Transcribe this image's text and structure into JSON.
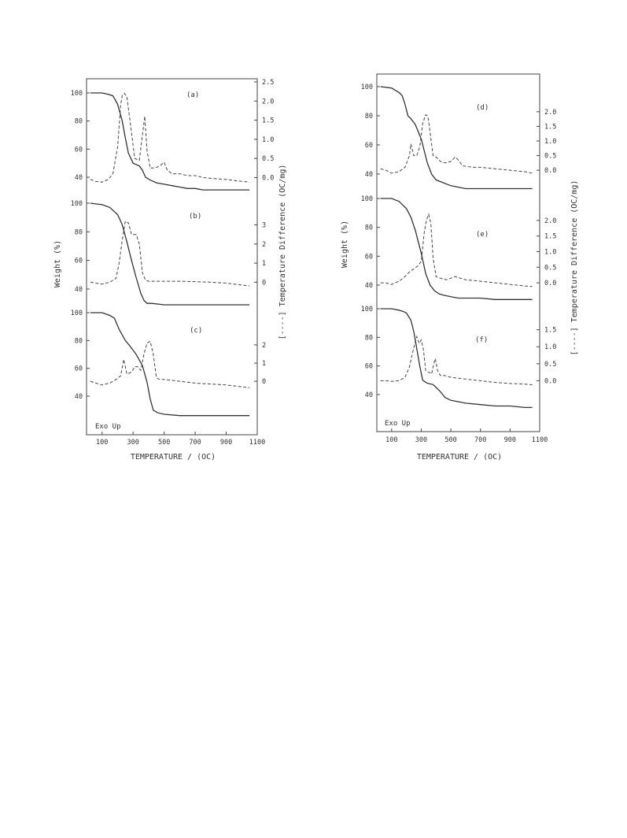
{
  "chart_data": [
    {
      "type": "line",
      "figure": "left",
      "xlabel": "TEMPERATURE / (OC)",
      "ylabel": "Weight (%)",
      "y2label": "[----] Temperature Difference (OC/mg)",
      "x_ticks": [
        "100",
        "300",
        "500",
        "700",
        "900",
        "1100"
      ],
      "xlim": [
        0,
        1100
      ],
      "annotation": "Exo Up",
      "panels": [
        {
          "label": "(a)",
          "weight_ticks": [
            "100",
            "80",
            "60",
            "40"
          ],
          "dt_ticks": [
            "2.5",
            "2.0",
            "1.5",
            "1.0",
            "0.5",
            "0.0"
          ],
          "dt_range": [
            -0.3,
            2.5
          ],
          "series": [
            {
              "kind": "weight",
              "x": [
                25,
                100,
                140,
                170,
                200,
                230,
                250,
                270,
                300,
                340,
                360,
                380,
                410,
                450,
                500,
                550,
                600,
                650,
                700,
                750,
                800,
                850,
                900,
                950,
                1000,
                1050
              ],
              "y": [
                100,
                100,
                99,
                98,
                92,
                80,
                68,
                57,
                50,
                48,
                45,
                40,
                38,
                36,
                35,
                34,
                33,
                32,
                32,
                31,
                31,
                31,
                31,
                31,
                31,
                31
              ]
            },
            {
              "kind": "dt",
              "x": [
                25,
                60,
                100,
                140,
                170,
                200,
                220,
                230,
                245,
                260,
                280,
                310,
                340,
                360,
                375,
                390,
                410,
                440,
                470,
                500,
                520,
                550,
                600,
                650,
                700,
                750,
                800,
                900,
                1000,
                1050
              ],
              "y": [
                -0.05,
                -0.1,
                -0.12,
                -0.05,
                0.1,
                0.8,
                1.9,
                2.15,
                2.2,
                2.1,
                1.5,
                0.5,
                0.45,
                1.1,
                1.6,
                0.7,
                0.25,
                0.25,
                0.3,
                0.4,
                0.2,
                0.1,
                0.1,
                0.05,
                0.05,
                0.0,
                -0.02,
                -0.05,
                -0.1,
                -0.12
              ]
            }
          ]
        },
        {
          "label": "(b)",
          "weight_ticks": [
            "100",
            "80",
            "60",
            "40"
          ],
          "dt_ticks": [
            "3",
            "2",
            "1",
            "0"
          ],
          "dt_range": [
            -0.4,
            3.6
          ],
          "series": [
            {
              "kind": "weight",
              "x": [
                25,
                100,
                150,
                200,
                230,
                260,
                290,
                320,
                350,
                370,
                390,
                420,
                500,
                600,
                700,
                800,
                900,
                1000,
                1050
              ],
              "y": [
                100,
                99,
                97,
                92,
                85,
                73,
                60,
                48,
                37,
                32,
                30,
                30,
                29,
                29,
                29,
                29,
                29,
                29,
                29
              ]
            },
            {
              "kind": "dt",
              "x": [
                25,
                60,
                100,
                150,
                190,
                210,
                230,
                250,
                270,
                290,
                320,
                340,
                360,
                380,
                400,
                450,
                500,
                600,
                700,
                800,
                900,
                1000,
                1050
              ],
              "y": [
                0,
                -0.05,
                -0.1,
                0,
                0.2,
                1.0,
                2.2,
                3.2,
                3.1,
                2.5,
                2.5,
                2.0,
                0.5,
                0.1,
                0.05,
                0.05,
                0.05,
                0.05,
                0.03,
                0,
                -0.05,
                -0.15,
                -0.2
              ]
            }
          ]
        },
        {
          "label": "(c)",
          "weight_ticks": [
            "100",
            "80",
            "60",
            "40"
          ],
          "dt_ticks": [
            "2",
            "1",
            "0"
          ],
          "dt_range": [
            -0.6,
            2.6
          ],
          "series": [
            {
              "kind": "weight",
              "x": [
                25,
                100,
                150,
                180,
                210,
                250,
                280,
                320,
                360,
                390,
                410,
                430,
                460,
                500,
                600,
                700,
                800,
                900,
                1000,
                1050
              ],
              "y": [
                100,
                100,
                98,
                96,
                88,
                80,
                76,
                70,
                62,
                50,
                38,
                30,
                28,
                27,
                26,
                26,
                26,
                26,
                26,
                26
              ]
            },
            {
              "kind": "dt",
              "x": [
                25,
                60,
                100,
                150,
                190,
                220,
                240,
                260,
                290,
                310,
                330,
                350,
                370,
                390,
                410,
                430,
                450,
                470,
                500,
                600,
                700,
                800,
                900,
                1000,
                1050
              ],
              "y": [
                0,
                -0.1,
                -0.2,
                -0.1,
                0.1,
                0.3,
                1.2,
                0.4,
                0.5,
                0.8,
                0.8,
                0.6,
                1.5,
                2.1,
                2.2,
                1.5,
                0.2,
                0.1,
                0.1,
                0,
                -0.1,
                -0.15,
                -0.2,
                -0.3,
                -0.35
              ]
            }
          ]
        }
      ]
    },
    {
      "type": "line",
      "figure": "right",
      "xlabel": "TEMPERATURE / (OC)",
      "ylabel": "Weight (%)",
      "y2label": "[----] Temperature Difference (OC/mg)",
      "x_ticks": [
        "100",
        "300",
        "500",
        "700",
        "900",
        "1100"
      ],
      "xlim": [
        0,
        1100
      ],
      "annotation": "Exo Up",
      "panels": [
        {
          "label": "(d)",
          "weight_ticks": [
            "100",
            "80",
            "60",
            "40"
          ],
          "dt_ticks": [
            "2.0",
            "1.5",
            "1.0",
            "0.5",
            "0.0"
          ],
          "dt_range": [
            -0.4,
            2.4
          ],
          "series": [
            {
              "kind": "weight",
              "x": [
                25,
                100,
                150,
                170,
                190,
                210,
                230,
                260,
                300,
                340,
                370,
                400,
                450,
                500,
                550,
                600,
                650,
                700,
                800,
                900,
                1000,
                1050
              ],
              "y": [
                100,
                99,
                96,
                94,
                88,
                80,
                78,
                74,
                64,
                48,
                40,
                36,
                34,
                32,
                31,
                30,
                30,
                30,
                30,
                30,
                30,
                30
              ]
            },
            {
              "kind": "dt",
              "x": [
                25,
                60,
                100,
                150,
                190,
                220,
                230,
                250,
                270,
                290,
                310,
                330,
                345,
                360,
                380,
                400,
                430,
                460,
                500,
                530,
                550,
                580,
                650,
                700,
                800,
                900,
                1000,
                1050
              ],
              "y": [
                0.05,
                0,
                -0.1,
                -0.05,
                0.1,
                0.5,
                0.9,
                0.5,
                0.5,
                0.8,
                1.6,
                1.9,
                1.85,
                1.3,
                0.5,
                0.45,
                0.3,
                0.25,
                0.3,
                0.45,
                0.35,
                0.15,
                0.1,
                0.1,
                0.05,
                0,
                -0.05,
                -0.1
              ]
            }
          ]
        },
        {
          "label": "(e)",
          "weight_ticks": [
            "100",
            "80",
            "60",
            "40"
          ],
          "dt_ticks": [
            "2.0",
            "1.5",
            "1.0",
            "0.5",
            "0.0"
          ],
          "dt_range": [
            -0.3,
            2.3
          ],
          "series": [
            {
              "kind": "weight",
              "x": [
                25,
                100,
                150,
                200,
                230,
                260,
                300,
                330,
                360,
                390,
                420,
                450,
                500,
                550,
                600,
                700,
                800,
                900,
                1000,
                1050
              ],
              "y": [
                100,
                100,
                98,
                93,
                87,
                78,
                62,
                48,
                40,
                36,
                34,
                33,
                32,
                31,
                31,
                31,
                30,
                30,
                30,
                30
              ]
            },
            {
              "kind": "dt",
              "x": [
                25,
                60,
                100,
                150,
                190,
                220,
                250,
                280,
                300,
                320,
                335,
                350,
                365,
                380,
                400,
                430,
                470,
                500,
                530,
                600,
                700,
                800,
                900,
                1000,
                1050
              ],
              "y": [
                0,
                0,
                -0.05,
                0.05,
                0.2,
                0.35,
                0.45,
                0.55,
                0.7,
                1.6,
                2.0,
                2.2,
                1.9,
                0.8,
                0.2,
                0.15,
                0.1,
                0.15,
                0.2,
                0.1,
                0.05,
                0,
                -0.05,
                -0.1,
                -0.12
              ]
            }
          ]
        },
        {
          "label": "(f)",
          "weight_ticks": [
            "100",
            "80",
            "60",
            "40"
          ],
          "dt_ticks": [
            "1.5",
            "1.0",
            "0.5",
            "0.0"
          ],
          "dt_range": [
            -0.5,
            1.7
          ],
          "series": [
            {
              "kind": "weight",
              "x": [
                25,
                100,
                150,
                180,
                200,
                230,
                250,
                270,
                290,
                310,
                340,
                380,
                400,
                430,
                460,
                500,
                600,
                700,
                800,
                900,
                1000,
                1050
              ],
              "y": [
                100,
                100,
                99,
                98,
                97,
                92,
                84,
                72,
                60,
                50,
                48,
                47,
                45,
                42,
                38,
                36,
                34,
                33,
                32,
                32,
                31,
                31
              ]
            },
            {
              "kind": "dt",
              "x": [
                25,
                60,
                100,
                150,
                190,
                220,
                240,
                260,
                270,
                285,
                300,
                315,
                330,
                350,
                370,
                385,
                395,
                410,
                430,
                460,
                500,
                600,
                700,
                800,
                900,
                1000,
                1050
              ],
              "y": [
                0,
                0,
                -0.02,
                0,
                0.1,
                0.4,
                0.8,
                1.15,
                1.3,
                1.1,
                1.2,
                0.9,
                0.3,
                0.25,
                0.2,
                0.5,
                0.65,
                0.3,
                0.15,
                0.15,
                0.1,
                0.05,
                0,
                -0.05,
                -0.08,
                -0.1,
                -0.12
              ]
            }
          ]
        }
      ]
    }
  ]
}
